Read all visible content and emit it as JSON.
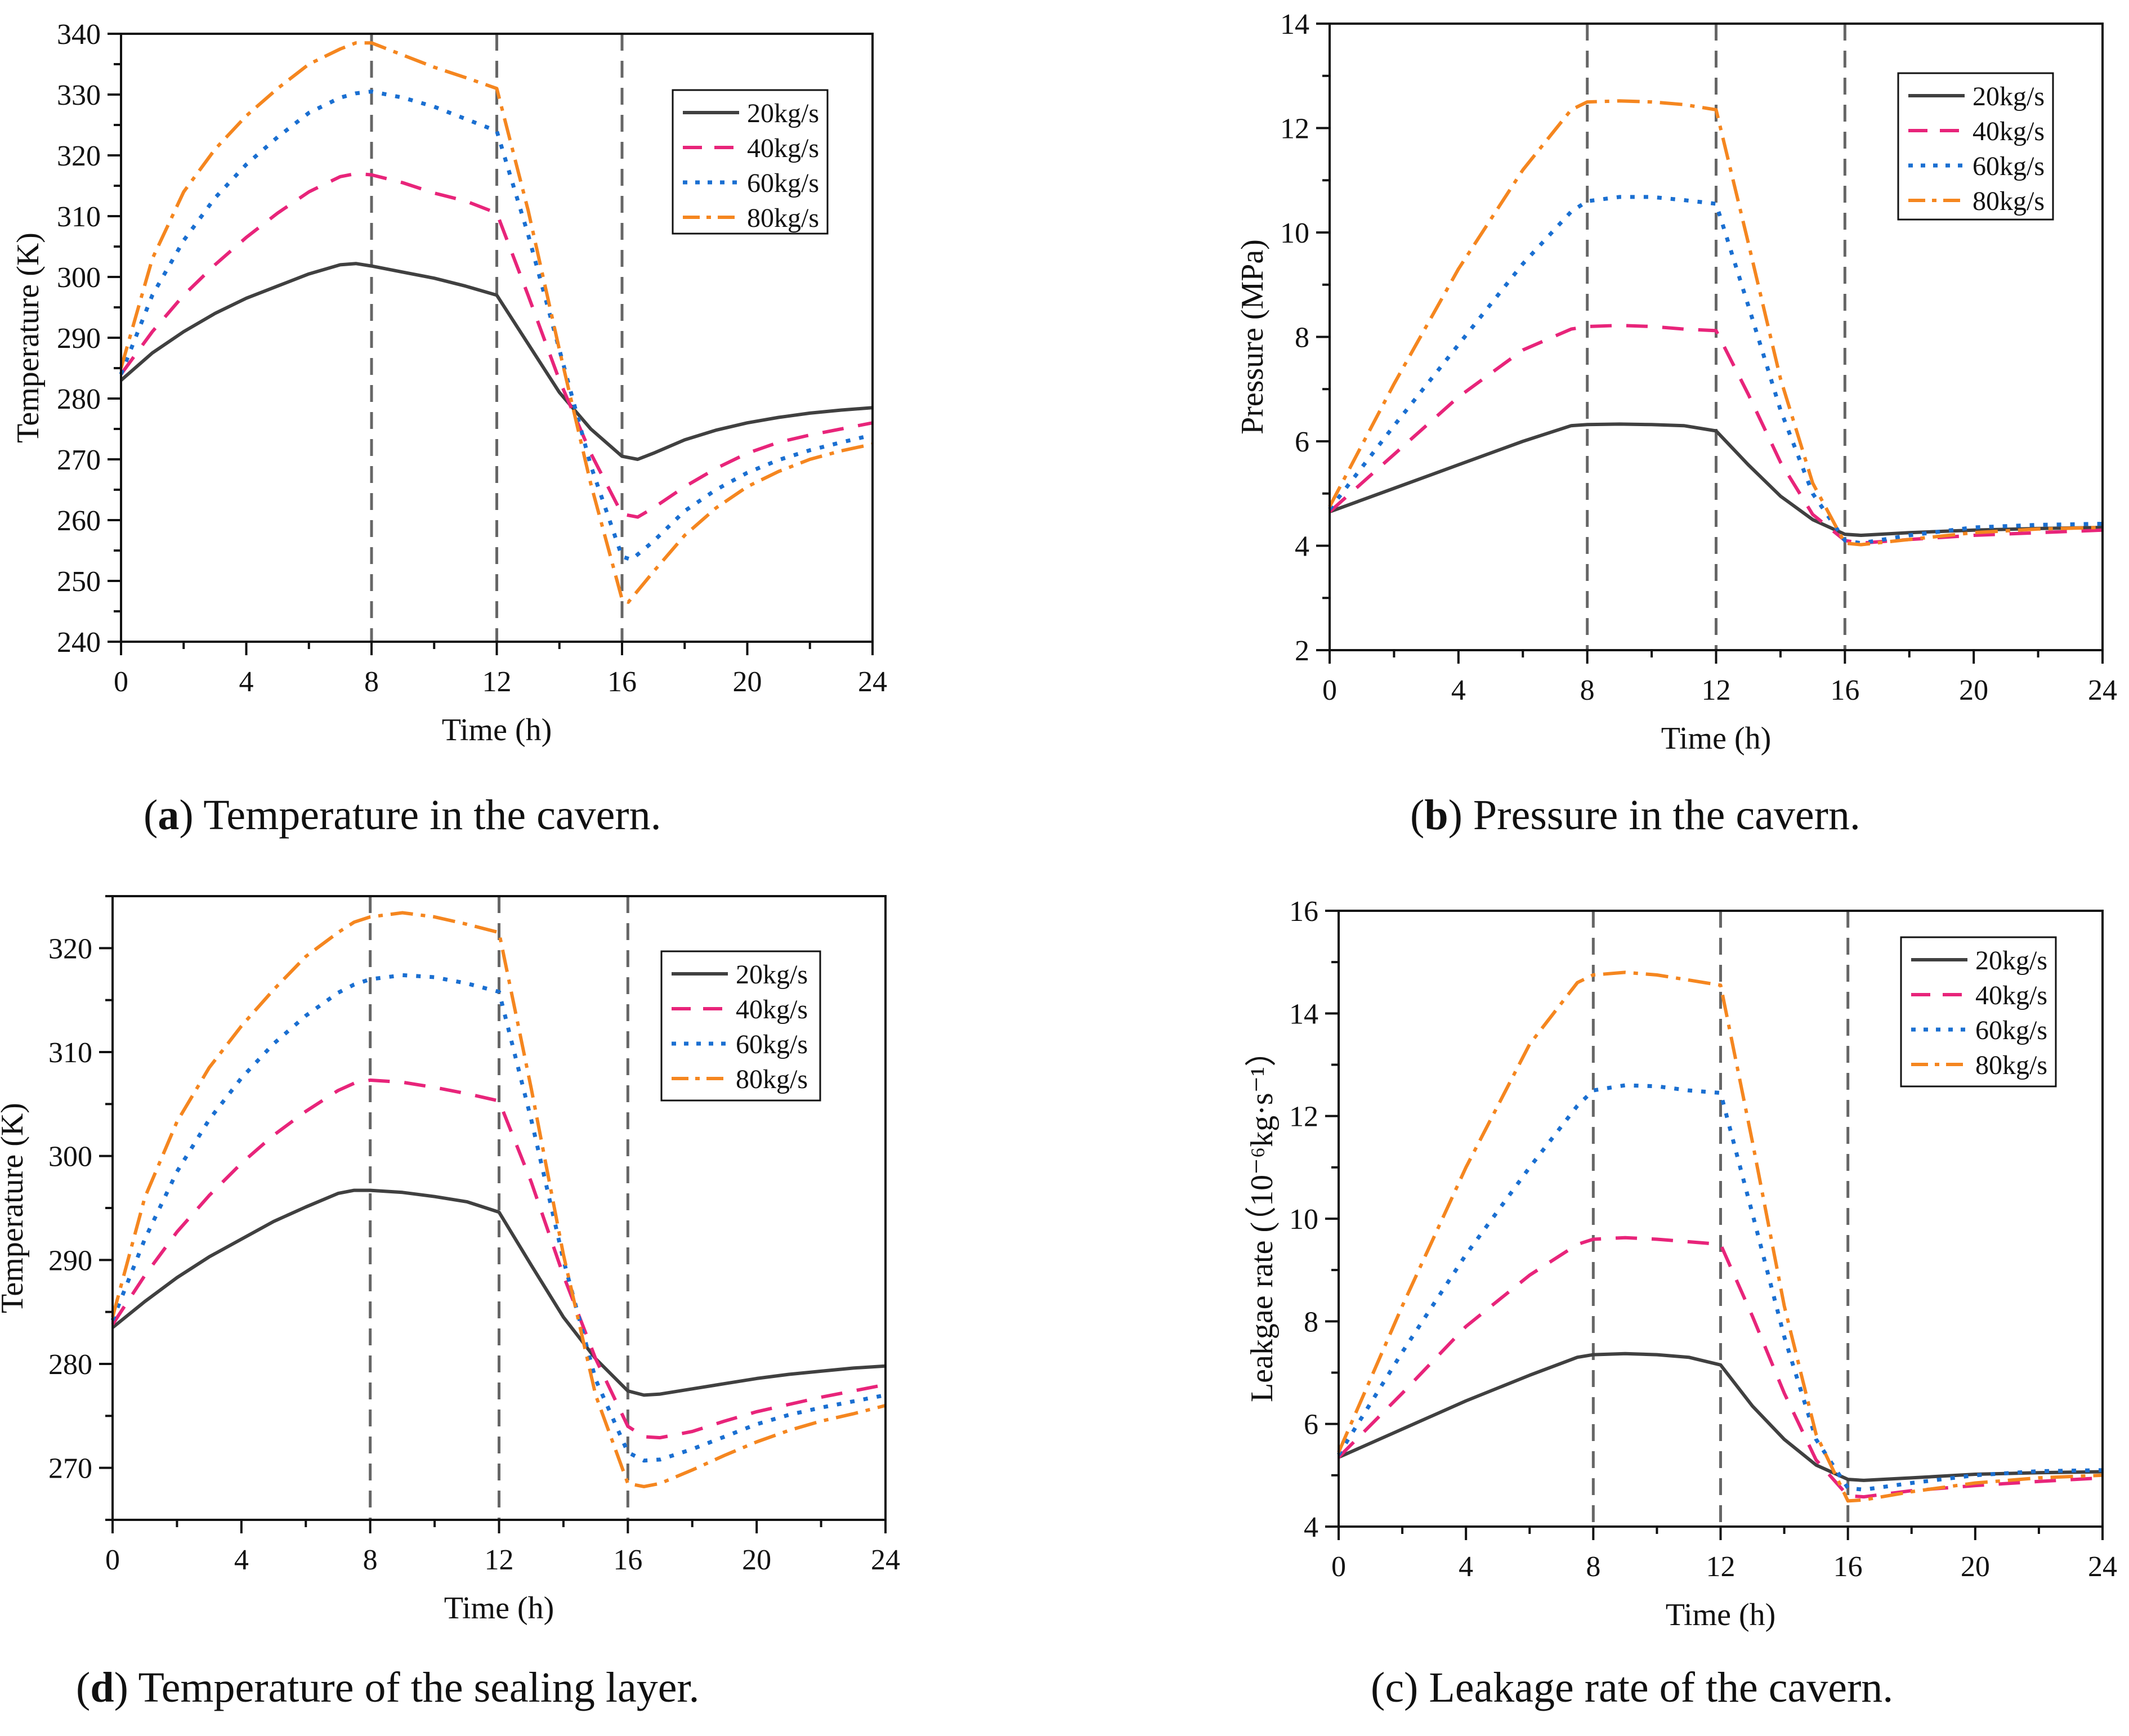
{
  "chart_data": [
    {
      "id": "a",
      "type": "line",
      "title": "",
      "xlabel": "Time (h)",
      "ylabel": "Temperature (K)",
      "xlim": [
        0,
        24
      ],
      "ylim": [
        240,
        340
      ],
      "xticks": [
        0,
        4,
        8,
        12,
        16,
        20,
        24
      ],
      "yticks": [
        240,
        250,
        260,
        270,
        280,
        290,
        300,
        310,
        320,
        330,
        340
      ],
      "vlines": [
        8,
        12,
        16
      ],
      "legend_position": "top-right",
      "caption_letter": "a",
      "caption_text": "Temperature in the cavern.",
      "series": [
        {
          "name": "20kg/s",
          "x": [
            0,
            1,
            2,
            3,
            4,
            5,
            6,
            7,
            7.5,
            8,
            9,
            10,
            11,
            12,
            13,
            14,
            15,
            16,
            16.5,
            17,
            18,
            19,
            20,
            21,
            22,
            23,
            24
          ],
          "y": [
            283,
            287.5,
            291,
            294,
            296.5,
            298.5,
            300.5,
            302,
            302.2,
            301.8,
            300.8,
            299.8,
            298.5,
            297,
            289,
            281,
            275,
            270.5,
            270,
            271,
            273.2,
            274.8,
            276,
            276.9,
            277.6,
            278.1,
            278.5
          ]
        },
        {
          "name": "40kg/s",
          "x": [
            0,
            1,
            2,
            3,
            4,
            5,
            6,
            7,
            7.5,
            8,
            9,
            10,
            11,
            12,
            13,
            14,
            15,
            16,
            16.5,
            17,
            18,
            19,
            20,
            21,
            22,
            23,
            24
          ],
          "y": [
            284,
            291,
            297,
            302,
            306.5,
            310.5,
            314,
            316.5,
            317,
            316.8,
            315.5,
            313.8,
            312.5,
            310.5,
            297,
            283,
            271,
            261,
            260.5,
            262,
            265.5,
            268.5,
            271,
            272.8,
            274,
            275,
            276
          ]
        },
        {
          "name": "60kg/s",
          "x": [
            0,
            1,
            2,
            3,
            4,
            5,
            6,
            7,
            7.5,
            8,
            9,
            10,
            11,
            12,
            13,
            14,
            15,
            16,
            16.3,
            17,
            18,
            19,
            20,
            21,
            22,
            23,
            24
          ],
          "y": [
            284,
            297,
            306,
            313,
            318.5,
            323,
            327,
            329.5,
            330.2,
            330.5,
            329.5,
            328,
            326,
            324,
            307,
            288,
            269,
            254,
            253.5,
            256.5,
            261.5,
            265,
            267.8,
            269.9,
            271.5,
            272.8,
            274
          ]
        },
        {
          "name": "80kg/s",
          "x": [
            0,
            1,
            2,
            3,
            4,
            5,
            6,
            7,
            7.5,
            8,
            9,
            10,
            11,
            12,
            13,
            14,
            15,
            16,
            16.2,
            17,
            18,
            19,
            20,
            21,
            22,
            23,
            24
          ],
          "y": [
            285,
            303,
            314,
            321,
            326.5,
            331,
            335,
            337.5,
            338.5,
            338.5,
            336.5,
            334.5,
            332.8,
            331,
            311,
            288,
            266,
            247,
            246.5,
            251.5,
            257.5,
            262,
            265.5,
            268,
            270,
            271.4,
            272.5
          ]
        }
      ]
    },
    {
      "id": "b",
      "type": "line",
      "title": "",
      "xlabel": "Time (h)",
      "ylabel": "Pressure (MPa)",
      "xlim": [
        0,
        24
      ],
      "ylim": [
        2,
        14
      ],
      "xticks": [
        0,
        4,
        8,
        12,
        16,
        20,
        24
      ],
      "yticks": [
        2,
        4,
        6,
        8,
        10,
        12,
        14
      ],
      "vlines": [
        8,
        12,
        16
      ],
      "legend_position": "top-right",
      "caption_letter": "b",
      "caption_text": "Pressure in the cavern.",
      "series": [
        {
          "name": "20kg/s",
          "x": [
            0,
            2,
            4,
            6,
            7.5,
            8,
            9,
            10,
            11,
            12,
            13,
            14,
            15,
            16,
            16.5,
            18,
            20,
            22,
            24
          ],
          "y": [
            4.65,
            5.1,
            5.55,
            6.0,
            6.3,
            6.32,
            6.33,
            6.32,
            6.3,
            6.2,
            5.55,
            4.95,
            4.5,
            4.22,
            4.2,
            4.25,
            4.3,
            4.33,
            4.35
          ]
        },
        {
          "name": "40kg/s",
          "x": [
            0,
            2,
            4,
            6,
            7.5,
            8,
            9,
            10,
            11,
            12,
            13,
            14,
            15,
            16,
            16.5,
            18,
            20,
            22,
            24
          ],
          "y": [
            4.65,
            5.75,
            6.85,
            7.75,
            8.15,
            8.2,
            8.22,
            8.2,
            8.15,
            8.12,
            6.9,
            5.6,
            4.6,
            4.1,
            4.05,
            4.12,
            4.2,
            4.25,
            4.3
          ]
        },
        {
          "name": "60kg/s",
          "x": [
            0,
            2,
            4,
            6,
            7.5,
            8,
            9,
            10,
            11,
            12,
            13,
            14,
            15,
            16,
            16.5,
            18,
            20,
            22,
            24
          ],
          "y": [
            4.7,
            6.3,
            7.85,
            9.4,
            10.4,
            10.6,
            10.68,
            10.68,
            10.62,
            10.55,
            8.6,
            6.6,
            5.0,
            4.1,
            4.05,
            4.2,
            4.35,
            4.4,
            4.42
          ]
        },
        {
          "name": "80kg/s",
          "x": [
            0,
            2,
            4,
            6,
            7.5,
            8,
            9,
            10,
            11,
            12,
            13,
            14,
            15,
            16,
            16.5,
            18,
            20,
            22,
            24
          ],
          "y": [
            4.75,
            7.1,
            9.3,
            11.2,
            12.35,
            12.5,
            12.52,
            12.5,
            12.45,
            12.35,
            9.8,
            7.2,
            5.2,
            4.05,
            4.02,
            4.12,
            4.25,
            4.32,
            4.35
          ]
        }
      ]
    },
    {
      "id": "d",
      "type": "line",
      "title": "",
      "xlabel": "Time (h)",
      "ylabel": "Temperature (K)",
      "xlim": [
        0,
        24
      ],
      "ylim": [
        265,
        325
      ],
      "xticks": [
        0,
        4,
        8,
        12,
        16,
        20,
        24
      ],
      "yticks": [
        270,
        280,
        290,
        300,
        310,
        320
      ],
      "vlines": [
        8,
        12,
        16
      ],
      "legend_position": "top-right",
      "caption_letter": "d",
      "caption_text": "Temperature of the sealing layer.",
      "series": [
        {
          "name": "20kg/s",
          "x": [
            0,
            1,
            2,
            3,
            4,
            5,
            6,
            7,
            7.5,
            8,
            9,
            10,
            11,
            12,
            13,
            14,
            15,
            16,
            16.5,
            17,
            18,
            19,
            20,
            21,
            22,
            23,
            24
          ],
          "y": [
            283.5,
            286,
            288.3,
            290.3,
            292,
            293.7,
            295.1,
            296.4,
            296.7,
            296.7,
            296.5,
            296.1,
            295.6,
            294.6,
            289.5,
            284.5,
            280.5,
            277.4,
            277,
            277.1,
            277.6,
            278.1,
            278.6,
            279,
            279.3,
            279.6,
            279.8
          ]
        },
        {
          "name": "40kg/s",
          "x": [
            0,
            1,
            2,
            3,
            4,
            5,
            6,
            7,
            7.5,
            8,
            9,
            10,
            11,
            12,
            13,
            14,
            15,
            16,
            16.5,
            17,
            18,
            19,
            20,
            21,
            22,
            23,
            24
          ],
          "y": [
            283.8,
            288.5,
            292.7,
            296.2,
            299.3,
            302,
            304.3,
            306.3,
            307,
            307.3,
            307.1,
            306.6,
            306,
            305.3,
            297.5,
            288.5,
            280.5,
            274,
            273,
            272.9,
            273.5,
            274.5,
            275.4,
            276.1,
            276.8,
            277.4,
            278
          ]
        },
        {
          "name": "60kg/s",
          "x": [
            0,
            1,
            2,
            3,
            4,
            5,
            6,
            7,
            7.5,
            8,
            9,
            10,
            11,
            12,
            13,
            14,
            15,
            16,
            16.5,
            17,
            18,
            19,
            20,
            21,
            22,
            23,
            24
          ],
          "y": [
            284.2,
            292,
            298.5,
            303.5,
            307.5,
            310.8,
            313.5,
            315.7,
            316.5,
            317,
            317.4,
            317.2,
            316.6,
            315.8,
            303.5,
            290,
            278.5,
            271.5,
            270.7,
            270.8,
            271.8,
            273,
            274.2,
            275.1,
            275.8,
            276.4,
            277
          ]
        },
        {
          "name": "80kg/s",
          "x": [
            0,
            1,
            2,
            3,
            4,
            5,
            6,
            7,
            7.5,
            8,
            9,
            10,
            11,
            12,
            13,
            14,
            15,
            16,
            16.5,
            17,
            18,
            19,
            20,
            21,
            22,
            23,
            24
          ],
          "y": [
            284.5,
            296,
            303.3,
            308.5,
            312.5,
            316,
            319.2,
            321.5,
            322.5,
            323,
            323.4,
            323,
            322.3,
            321.5,
            306.5,
            290.5,
            277,
            268.5,
            268.2,
            268.5,
            269.8,
            271.2,
            272.5,
            273.6,
            274.5,
            275.2,
            276
          ]
        }
      ]
    },
    {
      "id": "c",
      "type": "line",
      "title": "",
      "xlabel": "Time (h)",
      "ylabel": "Leakgae rate (（10⁻⁶kg·s⁻¹）",
      "xlim": [
        0,
        24
      ],
      "ylim": [
        4,
        16
      ],
      "xticks": [
        0,
        4,
        8,
        12,
        16,
        20,
        24
      ],
      "yticks": [
        4,
        6,
        8,
        10,
        12,
        14,
        16
      ],
      "vlines": [
        8,
        12,
        16
      ],
      "legend_position": "top-right",
      "caption_letter": "c",
      "caption_text": "Leakage rate of the cavern.",
      "series": [
        {
          "name": "20kg/s",
          "x": [
            0,
            2,
            4,
            6,
            7.5,
            8,
            9,
            10,
            11,
            12,
            13,
            14,
            15,
            16,
            16.5,
            18,
            20,
            22,
            24
          ],
          "y": [
            5.35,
            5.9,
            6.45,
            6.95,
            7.3,
            7.35,
            7.37,
            7.35,
            7.3,
            7.15,
            6.35,
            5.7,
            5.2,
            4.92,
            4.9,
            4.95,
            5.02,
            5.05,
            5.07
          ]
        },
        {
          "name": "40kg/s",
          "x": [
            0,
            2,
            4,
            6,
            7.5,
            8,
            9,
            10,
            11,
            12,
            13,
            14,
            15,
            16,
            16.5,
            18,
            20,
            22,
            24
          ],
          "y": [
            5.35,
            6.6,
            7.9,
            8.9,
            9.5,
            9.6,
            9.63,
            9.6,
            9.55,
            9.5,
            8.1,
            6.6,
            5.3,
            4.6,
            4.58,
            4.7,
            4.8,
            4.88,
            4.95
          ]
        },
        {
          "name": "60kg/s",
          "x": [
            0,
            2,
            4,
            6,
            7.5,
            8,
            9,
            10,
            11,
            12,
            13,
            14,
            15,
            16,
            16.5,
            18,
            20,
            22,
            24
          ],
          "y": [
            5.4,
            7.4,
            9.3,
            11.0,
            12.2,
            12.5,
            12.6,
            12.58,
            12.5,
            12.45,
            10.1,
            7.7,
            5.7,
            4.75,
            4.72,
            4.85,
            5.0,
            5.08,
            5.1
          ]
        },
        {
          "name": "80kg/s",
          "x": [
            0,
            2,
            4,
            6,
            7.5,
            8,
            9,
            10,
            11,
            12,
            13,
            14,
            15,
            16,
            16.5,
            18,
            20,
            22,
            24
          ],
          "y": [
            5.45,
            8.3,
            11.0,
            13.4,
            14.6,
            14.75,
            14.8,
            14.75,
            14.65,
            14.55,
            11.5,
            8.3,
            5.8,
            4.5,
            4.52,
            4.68,
            4.85,
            4.95,
            5.0
          ]
        }
      ]
    }
  ],
  "styles": {
    "series_colors": [
      "#404040",
      "#e8247a",
      "#1a6fd1",
      "#f5861f"
    ],
    "vline_color": "#666666",
    "axis_color": "#111111"
  }
}
